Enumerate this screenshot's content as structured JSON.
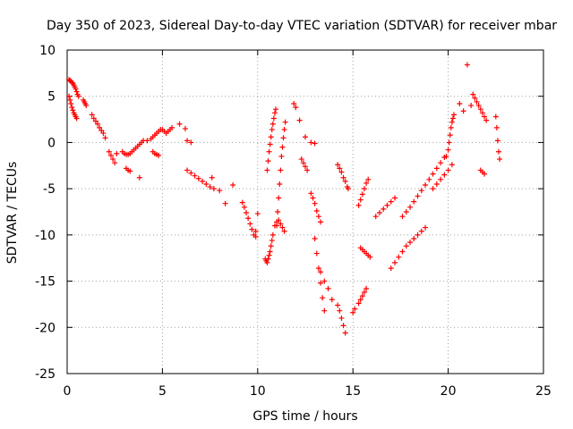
{
  "chart_data": {
    "type": "scatter",
    "title": "Day 350 of 2023, Sidereal Day-to-day VTEC variation (SDTVAR) for receiver mbar",
    "xlabel": "GPS time / hours",
    "ylabel": "SDTVAR / TECUs",
    "xlim": [
      0,
      25
    ],
    "ylim": [
      -25,
      10
    ],
    "xticks": [
      0,
      5,
      10,
      15,
      20,
      25
    ],
    "yticks": [
      -25,
      -20,
      -15,
      -10,
      -5,
      0,
      5,
      10
    ],
    "xtick_labels": [
      "0",
      "5",
      "10",
      "15",
      "20",
      "25"
    ],
    "ytick_labels": [
      "-25",
      "-20",
      "-15",
      "-10",
      "-5",
      "0",
      "5",
      "10"
    ],
    "grid": true,
    "marker": "+",
    "color": "#ff0000",
    "series": [
      {
        "name": "SDTVAR",
        "x": [
          0.1,
          0.15,
          0.2,
          0.25,
          0.3,
          0.35,
          0.4,
          0.45,
          0.5,
          0.55,
          0.6,
          0.1,
          0.15,
          0.2,
          0.25,
          0.3,
          0.35,
          0.4,
          0.45,
          0.5,
          0.85,
          0.9,
          0.95,
          1.0,
          1.3,
          1.4,
          1.5,
          1.6,
          1.7,
          1.8,
          1.9,
          2.0,
          2.2,
          2.3,
          2.4,
          2.5,
          2.6,
          2.9,
          3.0,
          3.1,
          3.2,
          3.3,
          3.4,
          3.5,
          3.6,
          3.7,
          3.8,
          3.9,
          4.0,
          3.1,
          3.2,
          3.3,
          3.8,
          4.2,
          4.4,
          4.5,
          4.6,
          4.7,
          4.8,
          4.9,
          5.0,
          5.1,
          5.2,
          5.3,
          5.4,
          5.5,
          4.5,
          4.6,
          4.7,
          4.8,
          5.9,
          6.2,
          6.3,
          6.5,
          6.3,
          6.5,
          6.7,
          6.9,
          7.1,
          7.3,
          7.5,
          7.7,
          7.6,
          8.0,
          8.3,
          8.7,
          9.2,
          9.3,
          9.4,
          9.5,
          9.6,
          9.7,
          9.8,
          9.9,
          10.0,
          9.9,
          10.4,
          10.45,
          10.5,
          10.55,
          10.6,
          10.65,
          10.7,
          10.75,
          10.8,
          10.5,
          10.55,
          10.6,
          10.65,
          10.7,
          10.75,
          10.8,
          10.85,
          10.9,
          10.95,
          10.9,
          11.0,
          11.1,
          11.2,
          11.3,
          11.4,
          11.0,
          11.05,
          11.1,
          11.15,
          11.2,
          11.25,
          11.3,
          11.35,
          11.4,
          11.45,
          11.9,
          12.0,
          12.2,
          12.5,
          12.8,
          13.0,
          12.3,
          12.4,
          12.5,
          12.6,
          12.8,
          12.9,
          13.0,
          13.1,
          13.2,
          13.3,
          13.0,
          13.1,
          13.2,
          13.3,
          13.4,
          13.5,
          13.3,
          13.5,
          13.7,
          13.9,
          14.2,
          14.3,
          14.4,
          14.5,
          14.6,
          14.7,
          14.75,
          14.2,
          14.3,
          14.4,
          14.5,
          14.6,
          15.0,
          15.1,
          15.3,
          15.4,
          15.5,
          15.6,
          15.7,
          15.3,
          15.4,
          15.5,
          15.6,
          15.7,
          15.8,
          15.4,
          15.5,
          15.6,
          15.7,
          15.8,
          15.9,
          16.2,
          16.4,
          16.6,
          16.8,
          17.0,
          17.2,
          17.0,
          17.2,
          17.4,
          17.6,
          17.8,
          18.0,
          18.2,
          18.4,
          18.6,
          18.8,
          17.6,
          17.8,
          18.0,
          18.2,
          18.4,
          18.6,
          18.8,
          19.0,
          19.2,
          19.4,
          19.6,
          19.8,
          19.2,
          19.4,
          19.6,
          19.8,
          20.0,
          20.2,
          19.9,
          20.0,
          20.05,
          20.1,
          20.15,
          20.2,
          20.25,
          20.3,
          20.6,
          20.8,
          21.0,
          21.2,
          21.3,
          21.4,
          21.5,
          21.6,
          21.7,
          21.8,
          21.9,
          22.0,
          21.7,
          21.8,
          21.9,
          22.5,
          22.55,
          22.6,
          22.65,
          22.7
        ],
        "y": [
          6.8,
          6.7,
          6.6,
          6.5,
          6.4,
          6.2,
          6.0,
          5.8,
          5.5,
          5.2,
          5.0,
          5.0,
          4.6,
          4.2,
          3.8,
          3.5,
          3.2,
          3.0,
          2.8,
          2.6,
          4.6,
          4.4,
          4.2,
          4.0,
          3.0,
          2.6,
          2.3,
          2.0,
          1.6,
          1.3,
          1.0,
          0.5,
          -1.0,
          -1.4,
          -1.8,
          -2.2,
          -1.2,
          -1.0,
          -1.2,
          -1.3,
          -1.3,
          -1.2,
          -1.0,
          -0.8,
          -0.6,
          -0.4,
          -0.2,
          0.0,
          0.2,
          -2.8,
          -3.0,
          -3.1,
          -3.8,
          0.2,
          0.4,
          0.6,
          0.8,
          1.0,
          1.2,
          1.4,
          1.4,
          1.2,
          1.0,
          1.2,
          1.4,
          1.6,
          -1.0,
          -1.2,
          -1.3,
          -1.4,
          2.0,
          1.5,
          0.2,
          0.0,
          -3.0,
          -3.3,
          -3.6,
          -3.9,
          -4.2,
          -4.5,
          -4.8,
          -5.0,
          -3.8,
          -5.2,
          -6.6,
          -4.6,
          -6.5,
          -7.0,
          -7.6,
          -8.2,
          -8.8,
          -9.4,
          -10.0,
          -10.2,
          -7.7,
          -9.6,
          -12.6,
          -12.8,
          -13.0,
          -12.6,
          -12.2,
          -11.8,
          -11.2,
          -10.6,
          -10.0,
          -3.0,
          -2.0,
          -1.0,
          -0.2,
          0.6,
          1.4,
          2.0,
          2.6,
          3.2,
          3.6,
          -9.0,
          -8.6,
          -8.4,
          -8.8,
          -9.2,
          -9.6,
          -9.0,
          -7.5,
          -6.0,
          -4.5,
          -3.0,
          -1.5,
          -0.5,
          0.5,
          1.4,
          2.2,
          4.2,
          3.8,
          2.4,
          0.6,
          0.0,
          -0.1,
          -1.8,
          -2.2,
          -2.6,
          -3.0,
          -5.5,
          -6.0,
          -6.6,
          -7.4,
          -8.0,
          -8.6,
          -10.4,
          -12.0,
          -13.6,
          -15.2,
          -16.8,
          -18.2,
          -14.0,
          -15.0,
          -15.8,
          -17.0,
          -2.4,
          -2.8,
          -3.2,
          -3.8,
          -4.2,
          -4.8,
          -5.0,
          -17.6,
          -18.2,
          -19.0,
          -19.8,
          -20.6,
          -18.4,
          -18.0,
          -17.4,
          -17.0,
          -16.6,
          -16.2,
          -15.8,
          -6.8,
          -6.2,
          -5.6,
          -5.0,
          -4.4,
          -4.0,
          -11.4,
          -11.6,
          -11.8,
          -12.0,
          -12.2,
          -12.4,
          -8.0,
          -7.6,
          -7.2,
          -6.8,
          -6.4,
          -6.0,
          -13.6,
          -13.0,
          -12.4,
          -11.8,
          -11.2,
          -10.8,
          -10.4,
          -10.0,
          -9.6,
          -9.2,
          -8.0,
          -7.5,
          -7.0,
          -6.4,
          -5.8,
          -5.2,
          -4.6,
          -4.0,
          -3.4,
          -2.8,
          -2.2,
          -1.6,
          -5.0,
          -4.5,
          -4.0,
          -3.5,
          -3.0,
          -2.4,
          -1.5,
          -0.8,
          0.0,
          0.8,
          1.6,
          2.2,
          2.6,
          3.0,
          4.2,
          3.4,
          8.4,
          4.0,
          5.2,
          4.8,
          4.4,
          4.0,
          3.6,
          3.2,
          2.8,
          2.4,
          -3.0,
          -3.2,
          -3.4,
          2.8,
          1.6,
          0.2,
          -1.0,
          -1.8
        ]
      }
    ]
  }
}
